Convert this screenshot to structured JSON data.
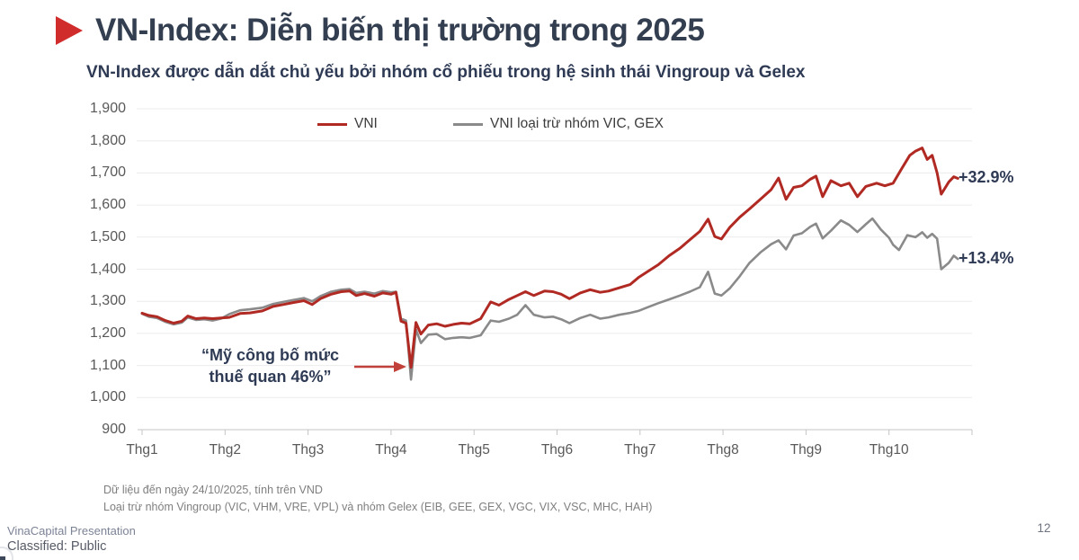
{
  "slide": {
    "title": "VN-Index: Diễn biến thị trường trong 2025",
    "subtitle": "VN-Index được dẫn dắt chủ yếu bởi nhóm cổ phiếu trong hệ sinh thái Vingroup và Gelex",
    "page_number": "12",
    "footer_line1": "VinaCapital Presentation",
    "footer_line2": "Classified: Public"
  },
  "annotation": {
    "text": "“Mỹ công bố mức thuế quan 46%”",
    "arrow_icon": "red-right-arrow"
  },
  "footnotes": [
    "Dữ liệu đến ngày 24/10/2025, tính trên VND",
    "Loại trừ nhóm Vingroup (VIC, VHM, VRE, VPL) và nhóm Gelex (EIB, GEE, GEX, VGC, VIX, VSC, MHC, HAH)"
  ],
  "colors": {
    "accent_red": "#B02A23",
    "bullet_red": "#D12C2C",
    "arrow_red": "#C2403A",
    "series_gray": "#8A8A8A",
    "navy_text": "#2F3B55",
    "grid": "#ECECEC",
    "axis": "#C4C4C4"
  },
  "chart_data": {
    "type": "line",
    "title": "",
    "xlabel": "",
    "ylabel": "",
    "ylim": [
      900,
      1900
    ],
    "grid": true,
    "legend_position": "top",
    "x_axis": {
      "unit": "month",
      "labels": [
        "Thg1",
        "Thg2",
        "Thg3",
        "Thg4",
        "Thg5",
        "Thg6",
        "Thg7",
        "Thg8",
        "Thg9",
        "Thg10"
      ]
    },
    "y_axis": {
      "min": 900,
      "max": 1900,
      "step": 100,
      "tick_labels": [
        "900",
        "1,000",
        "1,100",
        "1,200",
        "1,300",
        "1,400",
        "1,500",
        "1,600",
        "1,700",
        "1,800",
        "1,900"
      ]
    },
    "series": [
      {
        "name": "VNI",
        "color": "#B02A23",
        "end_label": "+32.9%",
        "points": [
          [
            0.0,
            1263
          ],
          [
            0.08,
            1256
          ],
          [
            0.18,
            1252
          ],
          [
            0.28,
            1240
          ],
          [
            0.38,
            1232
          ],
          [
            0.48,
            1238
          ],
          [
            0.55,
            1254
          ],
          [
            0.65,
            1246
          ],
          [
            0.75,
            1248
          ],
          [
            0.85,
            1246
          ],
          [
            0.95,
            1248
          ],
          [
            1.05,
            1250
          ],
          [
            1.18,
            1262
          ],
          [
            1.3,
            1264
          ],
          [
            1.45,
            1270
          ],
          [
            1.58,
            1284
          ],
          [
            1.7,
            1290
          ],
          [
            1.82,
            1296
          ],
          [
            1.95,
            1302
          ],
          [
            2.05,
            1290
          ],
          [
            2.15,
            1308
          ],
          [
            2.28,
            1322
          ],
          [
            2.4,
            1330
          ],
          [
            2.5,
            1332
          ],
          [
            2.58,
            1318
          ],
          [
            2.68,
            1324
          ],
          [
            2.8,
            1316
          ],
          [
            2.9,
            1326
          ],
          [
            3.0,
            1322
          ],
          [
            3.06,
            1328
          ],
          [
            3.12,
            1238
          ],
          [
            3.18,
            1232
          ],
          [
            3.24,
            1094
          ],
          [
            3.3,
            1234
          ],
          [
            3.36,
            1198
          ],
          [
            3.45,
            1226
          ],
          [
            3.55,
            1230
          ],
          [
            3.65,
            1222
          ],
          [
            3.75,
            1228
          ],
          [
            3.85,
            1232
          ],
          [
            3.95,
            1230
          ],
          [
            4.08,
            1246
          ],
          [
            4.2,
            1298
          ],
          [
            4.3,
            1288
          ],
          [
            4.42,
            1306
          ],
          [
            4.52,
            1318
          ],
          [
            4.62,
            1330
          ],
          [
            4.72,
            1318
          ],
          [
            4.85,
            1332
          ],
          [
            4.95,
            1330
          ],
          [
            5.05,
            1322
          ],
          [
            5.15,
            1308
          ],
          [
            5.28,
            1326
          ],
          [
            5.4,
            1336
          ],
          [
            5.52,
            1328
          ],
          [
            5.62,
            1332
          ],
          [
            5.75,
            1342
          ],
          [
            5.88,
            1352
          ],
          [
            5.98,
            1374
          ],
          [
            6.1,
            1394
          ],
          [
            6.22,
            1414
          ],
          [
            6.35,
            1442
          ],
          [
            6.48,
            1465
          ],
          [
            6.6,
            1492
          ],
          [
            6.72,
            1518
          ],
          [
            6.82,
            1556
          ],
          [
            6.9,
            1502
          ],
          [
            6.98,
            1494
          ],
          [
            7.08,
            1530
          ],
          [
            7.2,
            1562
          ],
          [
            7.32,
            1588
          ],
          [
            7.45,
            1618
          ],
          [
            7.58,
            1648
          ],
          [
            7.67,
            1684
          ],
          [
            7.76,
            1618
          ],
          [
            7.85,
            1655
          ],
          [
            7.95,
            1660
          ],
          [
            8.05,
            1680
          ],
          [
            8.12,
            1690
          ],
          [
            8.2,
            1626
          ],
          [
            8.3,
            1676
          ],
          [
            8.42,
            1660
          ],
          [
            8.52,
            1668
          ],
          [
            8.62,
            1626
          ],
          [
            8.72,
            1658
          ],
          [
            8.85,
            1668
          ],
          [
            8.95,
            1660
          ],
          [
            9.05,
            1668
          ],
          [
            9.15,
            1712
          ],
          [
            9.25,
            1755
          ],
          [
            9.32,
            1768
          ],
          [
            9.4,
            1778
          ],
          [
            9.46,
            1742
          ],
          [
            9.52,
            1755
          ],
          [
            9.58,
            1700
          ],
          [
            9.63,
            1634
          ],
          [
            9.72,
            1672
          ],
          [
            9.78,
            1688
          ],
          [
            9.83,
            1683
          ]
        ]
      },
      {
        "name": "VNI loại trừ nhóm VIC, GEX",
        "color": "#8A8A8A",
        "end_label": "+13.4%",
        "points": [
          [
            0.0,
            1261
          ],
          [
            0.08,
            1252
          ],
          [
            0.18,
            1248
          ],
          [
            0.28,
            1236
          ],
          [
            0.38,
            1228
          ],
          [
            0.48,
            1234
          ],
          [
            0.55,
            1250
          ],
          [
            0.65,
            1242
          ],
          [
            0.75,
            1244
          ],
          [
            0.85,
            1240
          ],
          [
            0.95,
            1246
          ],
          [
            1.05,
            1260
          ],
          [
            1.18,
            1272
          ],
          [
            1.3,
            1275
          ],
          [
            1.45,
            1280
          ],
          [
            1.58,
            1292
          ],
          [
            1.7,
            1298
          ],
          [
            1.82,
            1304
          ],
          [
            1.95,
            1310
          ],
          [
            2.05,
            1300
          ],
          [
            2.15,
            1316
          ],
          [
            2.28,
            1330
          ],
          [
            2.4,
            1336
          ],
          [
            2.5,
            1338
          ],
          [
            2.58,
            1326
          ],
          [
            2.68,
            1330
          ],
          [
            2.8,
            1324
          ],
          [
            2.9,
            1332
          ],
          [
            3.0,
            1328
          ],
          [
            3.06,
            1330
          ],
          [
            3.12,
            1246
          ],
          [
            3.18,
            1240
          ],
          [
            3.24,
            1056
          ],
          [
            3.3,
            1212
          ],
          [
            3.36,
            1170
          ],
          [
            3.45,
            1196
          ],
          [
            3.55,
            1198
          ],
          [
            3.65,
            1182
          ],
          [
            3.75,
            1186
          ],
          [
            3.85,
            1188
          ],
          [
            3.95,
            1186
          ],
          [
            4.08,
            1194
          ],
          [
            4.2,
            1240
          ],
          [
            4.3,
            1236
          ],
          [
            4.42,
            1246
          ],
          [
            4.52,
            1258
          ],
          [
            4.62,
            1288
          ],
          [
            4.72,
            1258
          ],
          [
            4.85,
            1250
          ],
          [
            4.95,
            1252
          ],
          [
            5.05,
            1244
          ],
          [
            5.15,
            1232
          ],
          [
            5.28,
            1248
          ],
          [
            5.4,
            1258
          ],
          [
            5.52,
            1246
          ],
          [
            5.62,
            1250
          ],
          [
            5.75,
            1258
          ],
          [
            5.88,
            1264
          ],
          [
            5.98,
            1270
          ],
          [
            6.1,
            1282
          ],
          [
            6.22,
            1294
          ],
          [
            6.35,
            1306
          ],
          [
            6.48,
            1318
          ],
          [
            6.6,
            1330
          ],
          [
            6.72,
            1344
          ],
          [
            6.82,
            1392
          ],
          [
            6.9,
            1324
          ],
          [
            6.98,
            1318
          ],
          [
            7.08,
            1340
          ],
          [
            7.2,
            1378
          ],
          [
            7.32,
            1420
          ],
          [
            7.45,
            1452
          ],
          [
            7.58,
            1478
          ],
          [
            7.67,
            1490
          ],
          [
            7.76,
            1462
          ],
          [
            7.85,
            1505
          ],
          [
            7.95,
            1512
          ],
          [
            8.05,
            1532
          ],
          [
            8.12,
            1542
          ],
          [
            8.2,
            1496
          ],
          [
            8.3,
            1520
          ],
          [
            8.42,
            1552
          ],
          [
            8.52,
            1538
          ],
          [
            8.62,
            1516
          ],
          [
            8.72,
            1540
          ],
          [
            8.8,
            1558
          ],
          [
            8.9,
            1524
          ],
          [
            9.0,
            1498
          ],
          [
            9.05,
            1476
          ],
          [
            9.12,
            1460
          ],
          [
            9.22,
            1506
          ],
          [
            9.32,
            1500
          ],
          [
            9.4,
            1515
          ],
          [
            9.46,
            1498
          ],
          [
            9.52,
            1510
          ],
          [
            9.58,
            1495
          ],
          [
            9.63,
            1400
          ],
          [
            9.72,
            1420
          ],
          [
            9.78,
            1442
          ],
          [
            9.83,
            1432
          ]
        ]
      }
    ],
    "annotation": "“Mỹ công bố mức thuế quan 46%”",
    "source_note": "Dữ liệu đến ngày 24/10/2025, tính trên VND"
  }
}
